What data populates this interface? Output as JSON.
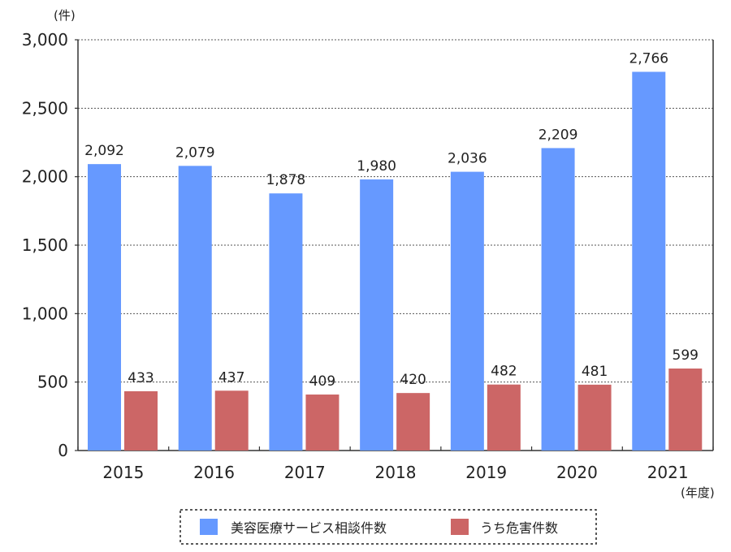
{
  "chart_data": {
    "type": "bar",
    "y_unit": "(件)",
    "x_unit": "(年度)",
    "categories": [
      "2015",
      "2016",
      "2017",
      "2018",
      "2019",
      "2020",
      "2021"
    ],
    "series": [
      {
        "name": "美容医療サービス相談件数",
        "values": [
          2092,
          2079,
          1878,
          1980,
          2036,
          2209,
          2766
        ],
        "labels": [
          "2,092",
          "2,079",
          "1,878",
          "1,980",
          "2,036",
          "2,209",
          "2,766"
        ],
        "color": "#6699ff"
      },
      {
        "name": "うち危害件数",
        "values": [
          433,
          437,
          409,
          420,
          482,
          481,
          599
        ],
        "labels": [
          "433",
          "437",
          "409",
          "420",
          "482",
          "481",
          "599"
        ],
        "color": "#cc6666"
      }
    ],
    "ylim": [
      0,
      3000
    ],
    "yticks": [
      0,
      500,
      1000,
      1500,
      2000,
      2500,
      3000
    ],
    "ytick_labels": [
      "0",
      "500",
      "1,000",
      "1,500",
      "2,000",
      "2,500",
      "3,000"
    ],
    "grid": true,
    "legend_position": "bottom"
  }
}
